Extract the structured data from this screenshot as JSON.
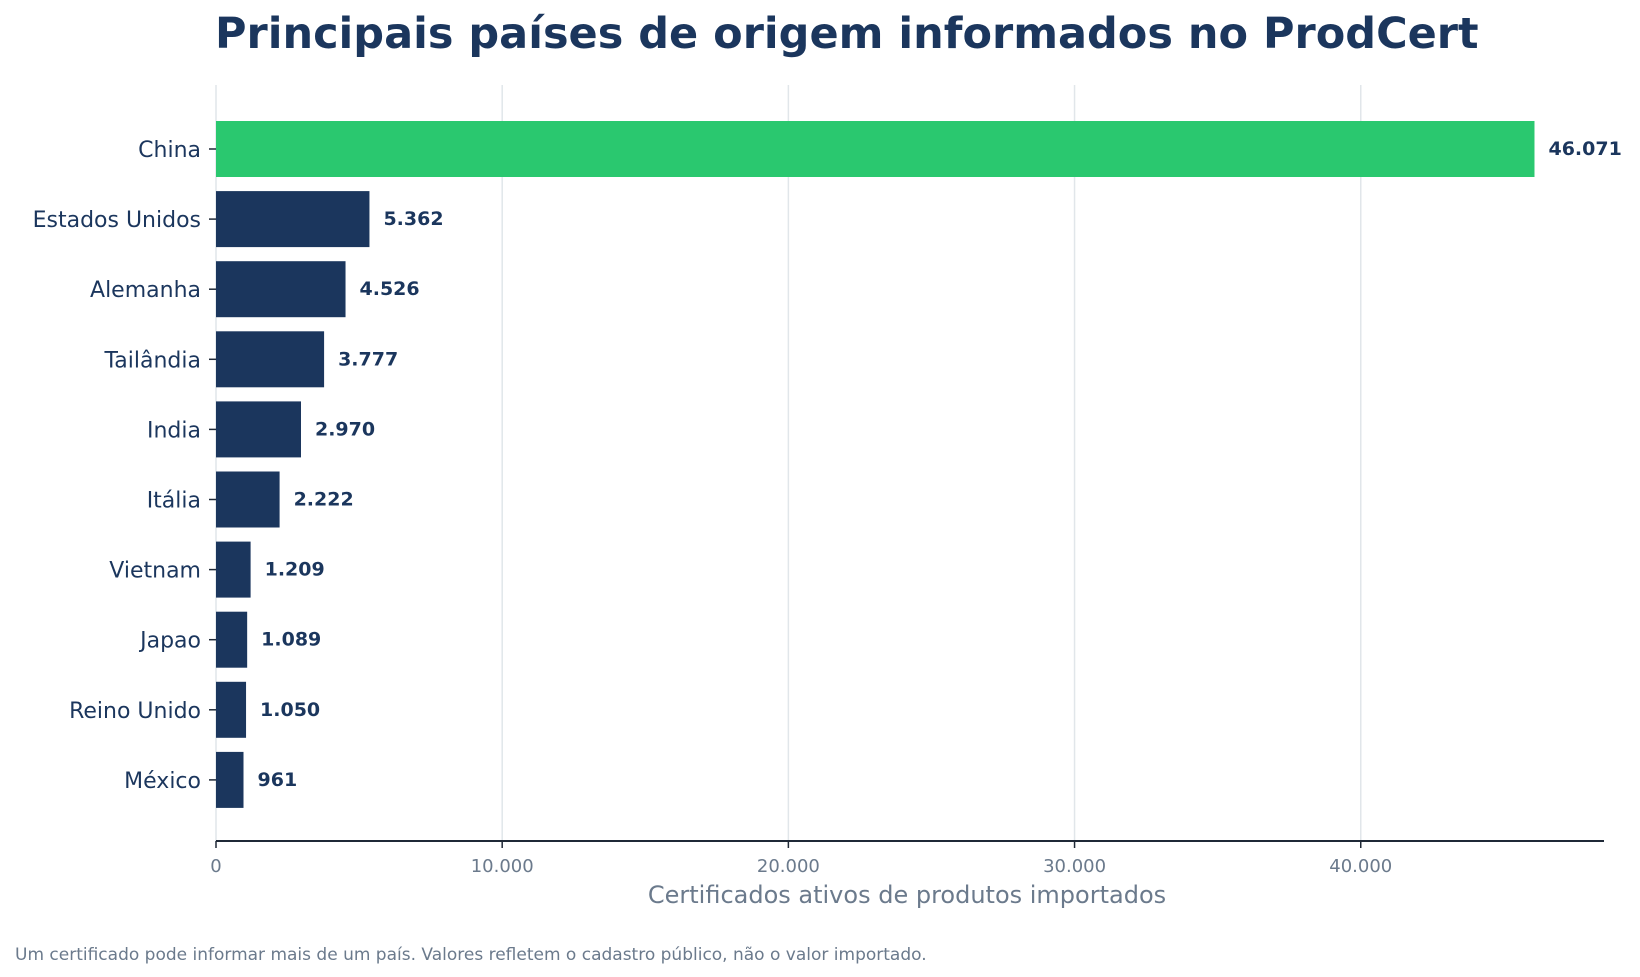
{
  "chart_data": {
    "type": "bar",
    "orientation": "horizontal",
    "title": "Principais países de origem informados no ProdCert",
    "xlabel": "Certificados ativos de produtos importados",
    "ylabel": "",
    "categories": [
      "China",
      "Estados Unidos",
      "Alemanha",
      "Tailândia",
      "India",
      "Itália",
      "Vietnam",
      "Japao",
      "Reino Unido",
      "México"
    ],
    "values": [
      46071,
      5362,
      4526,
      3777,
      2970,
      2222,
      1209,
      1089,
      1050,
      961
    ],
    "value_labels": [
      "46.071",
      "5.362",
      "4.526",
      "3.777",
      "2.970",
      "2.222",
      "1.209",
      "1.089",
      "1.050",
      "961"
    ],
    "xlim": [
      0,
      48500
    ],
    "x_ticks": [
      0,
      10000,
      20000,
      30000,
      40000
    ],
    "x_tick_labels": [
      "0",
      "10.000",
      "20.000",
      "30.000",
      "40.000"
    ],
    "grid": "vertical",
    "legend": "none",
    "highlight_index": 0,
    "colors": {
      "highlight": "#2ac86f",
      "default": "#1b365d",
      "grid": "#e1e6ea",
      "axis": "#1f2937"
    }
  },
  "footnote": "Um certificado pode informar mais de um país. Valores refletem o cadastro público, não o valor importado."
}
